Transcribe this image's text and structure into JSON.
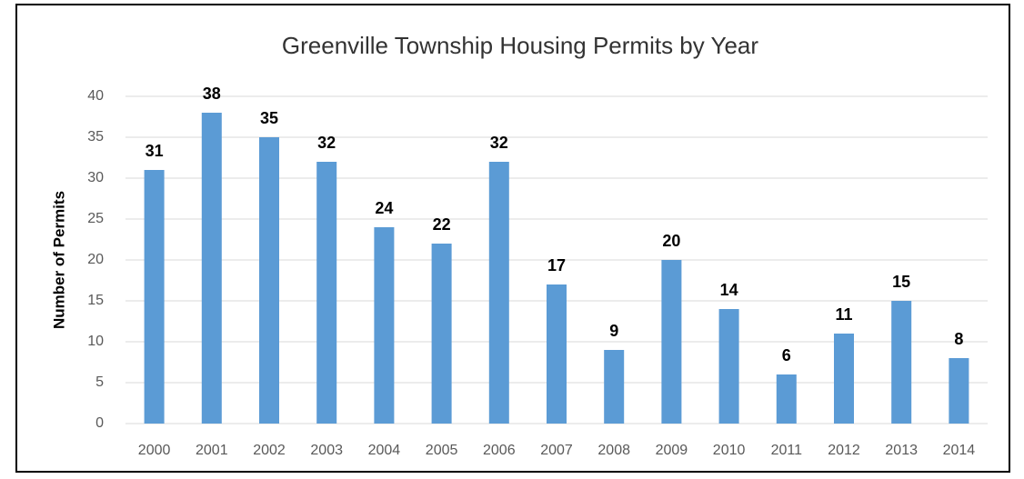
{
  "chart_data": {
    "type": "bar",
    "title": "Greenville Township Housing Permits by Year",
    "y_label": "Number of Permits",
    "categories": [
      "2000",
      "2001",
      "2002",
      "2003",
      "2004",
      "2005",
      "2006",
      "2007",
      "2008",
      "2009",
      "2010",
      "2011",
      "2012",
      "2013",
      "2014"
    ],
    "values": [
      31,
      38,
      35,
      32,
      24,
      22,
      32,
      17,
      9,
      20,
      14,
      6,
      11,
      15,
      8
    ],
    "color": "#5b9bd5",
    "ylim": [
      0,
      40
    ],
    "yticks": [
      0,
      5,
      10,
      15,
      20,
      25,
      30,
      35,
      40
    ],
    "grid": true,
    "data_labels": true
  }
}
